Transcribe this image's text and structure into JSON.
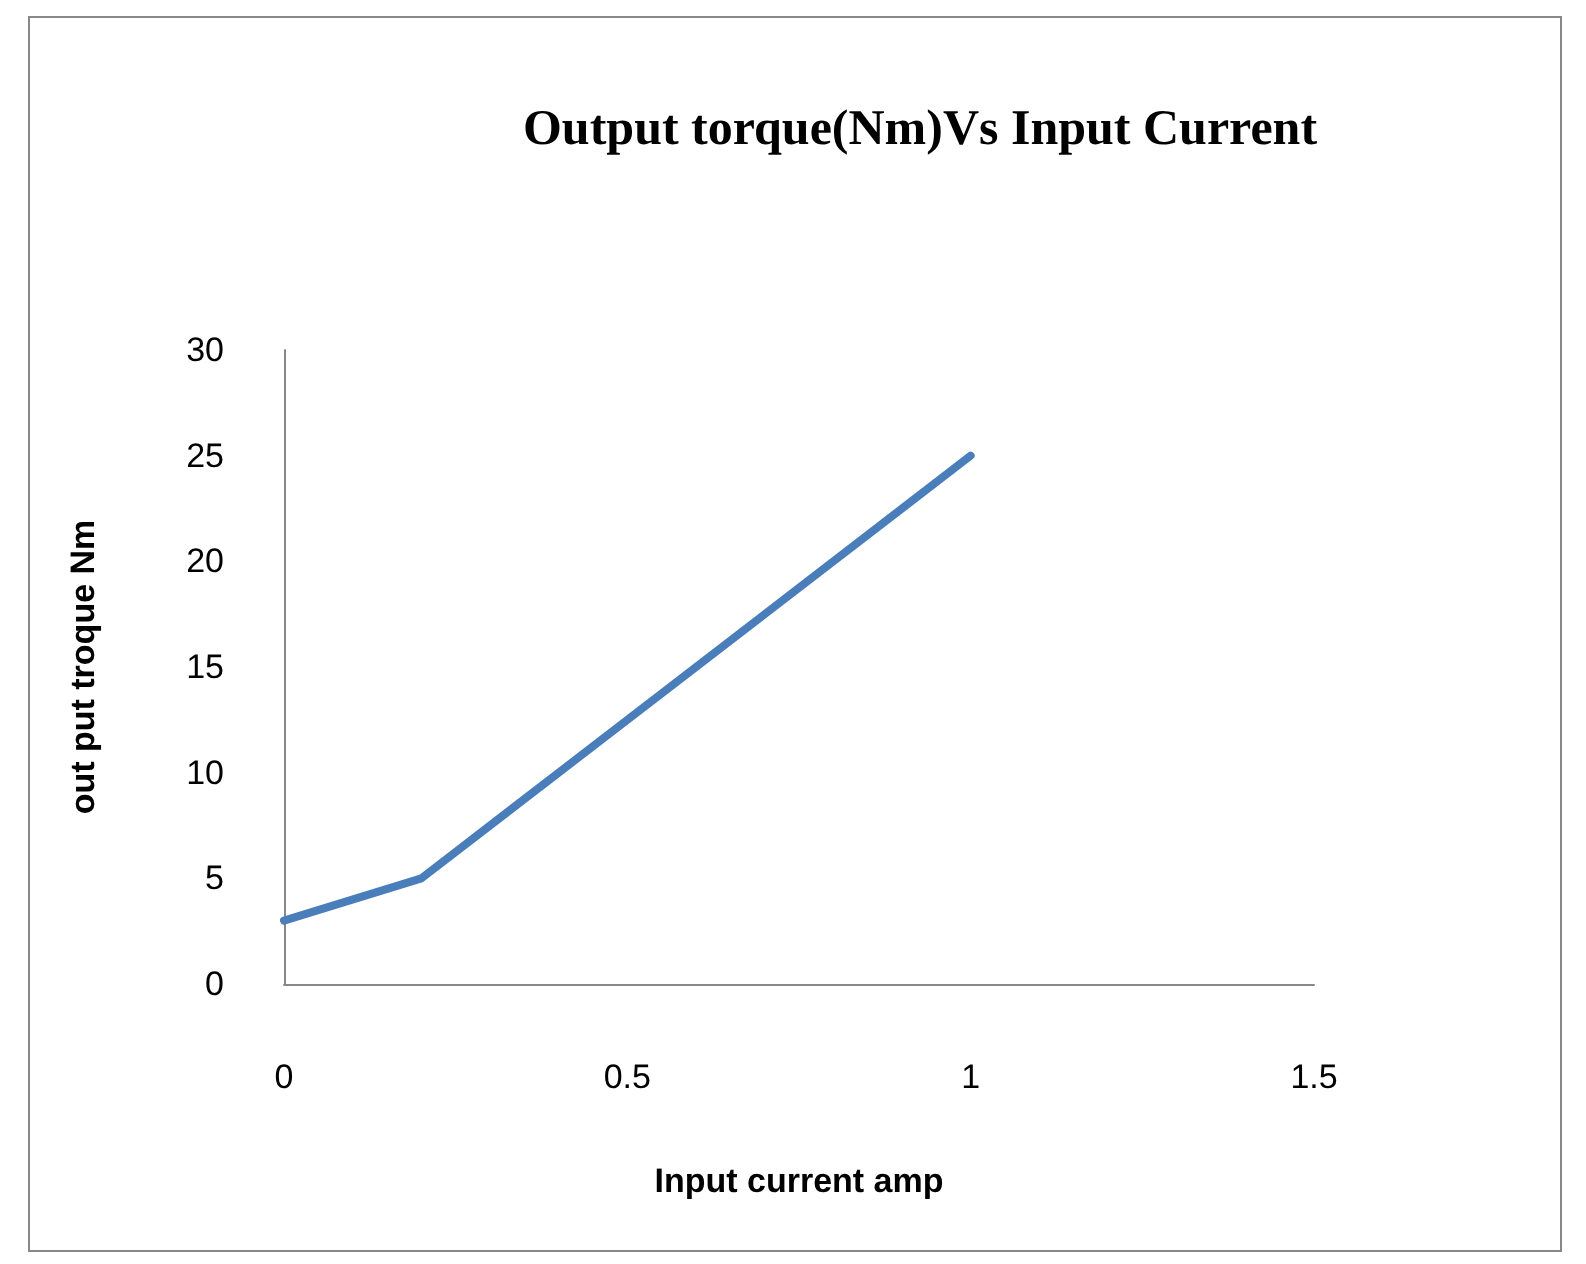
{
  "chart_data": {
    "type": "line",
    "title": "Output torque(Nm)Vs Input Current",
    "xlabel": "Input current amp",
    "ylabel": "out put troque Nm",
    "x": [
      0,
      0.2,
      1
    ],
    "series": [
      {
        "color": "#4a7ebb",
        "values": [
          3,
          5,
          25
        ]
      }
    ],
    "xlim": [
      0,
      1.5
    ],
    "xticks": [
      0,
      0.5,
      1,
      1.5
    ],
    "ylim": [
      0,
      30
    ],
    "yticks": [
      0,
      5,
      10,
      15,
      20,
      25,
      30
    ],
    "grid": false,
    "marker": "none",
    "line_style": "solid"
  }
}
